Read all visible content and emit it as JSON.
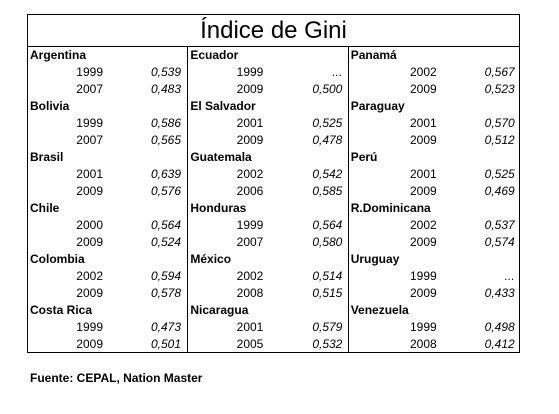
{
  "title": "Índice de Gini",
  "columns": [
    [
      {
        "name": "Argentina",
        "rows": [
          [
            "1999",
            "0,539"
          ],
          [
            "2007",
            "0,483"
          ]
        ]
      },
      {
        "name": "Bolivia",
        "rows": [
          [
            "1999",
            "0,586"
          ],
          [
            "2007",
            "0,565"
          ]
        ]
      },
      {
        "name": "Brasil",
        "rows": [
          [
            "2001",
            "0,639"
          ],
          [
            "2009",
            "0,576"
          ]
        ]
      },
      {
        "name": "Chile",
        "rows": [
          [
            "2000",
            "0,564"
          ],
          [
            "2009",
            "0,524"
          ]
        ]
      },
      {
        "name": "Colombia",
        "rows": [
          [
            "2002",
            "0,594"
          ],
          [
            "2009",
            "0,578"
          ]
        ]
      },
      {
        "name": "Costa Rica",
        "rows": [
          [
            "1999",
            "0,473"
          ],
          [
            "2009",
            "0,501"
          ]
        ]
      }
    ],
    [
      {
        "name": "Ecuador",
        "rows": [
          [
            "1999",
            "..."
          ],
          [
            "2009",
            "0,500"
          ]
        ]
      },
      {
        "name": "El Salvador",
        "rows": [
          [
            "2001",
            "0,525"
          ],
          [
            "2009",
            "0,478"
          ]
        ]
      },
      {
        "name": "Guatemala",
        "rows": [
          [
            "2002",
            "0,542"
          ],
          [
            "2006",
            "0,585"
          ]
        ]
      },
      {
        "name": "Honduras",
        "rows": [
          [
            "1999",
            "0,564"
          ],
          [
            "2007",
            "0,580"
          ]
        ]
      },
      {
        "name": "México",
        "rows": [
          [
            "2002",
            "0,514"
          ],
          [
            "2008",
            "0,515"
          ]
        ]
      },
      {
        "name": "Nicaragua",
        "rows": [
          [
            "2001",
            "0,579"
          ],
          [
            "2005",
            "0,532"
          ]
        ]
      }
    ],
    [
      {
        "name": "Panamá",
        "rows": [
          [
            "2002",
            "0,567"
          ],
          [
            "2009",
            "0,523"
          ]
        ]
      },
      {
        "name": "Paraguay",
        "rows": [
          [
            "2001",
            "0,570"
          ],
          [
            "2009",
            "0,512"
          ]
        ]
      },
      {
        "name": "Perú",
        "rows": [
          [
            "2001",
            "0,525"
          ],
          [
            "2009",
            "0,469"
          ]
        ]
      },
      {
        "name": "R.Dominicana",
        "rows": [
          [
            "2002",
            "0,537"
          ],
          [
            "2009",
            "0,574"
          ]
        ]
      },
      {
        "name": "Uruguay",
        "rows": [
          [
            "1999",
            "..."
          ],
          [
            "2009",
            "0,433"
          ]
        ]
      },
      {
        "name": "Venezuela",
        "rows": [
          [
            "1999",
            "0,498"
          ],
          [
            "2008",
            "0,412"
          ]
        ]
      }
    ]
  ],
  "source": "Fuente: CEPAL, Nation Master"
}
